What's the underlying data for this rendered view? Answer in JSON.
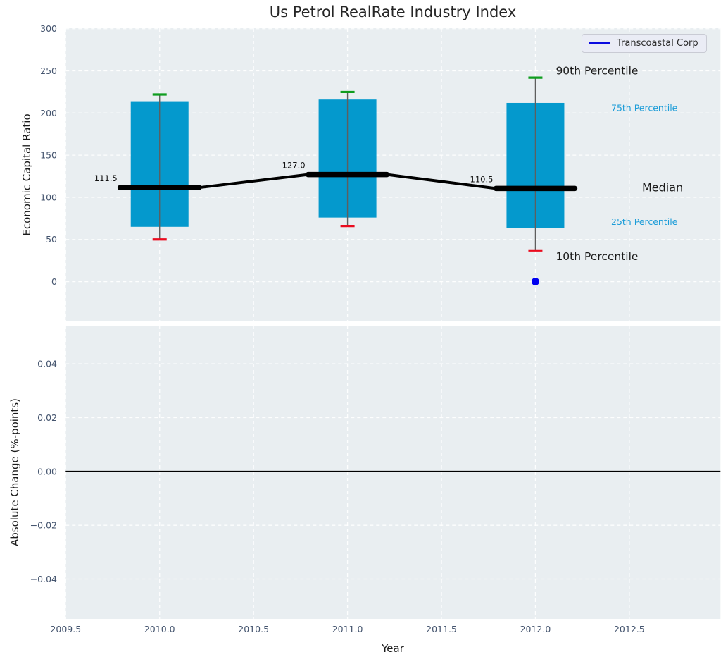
{
  "title": "Us Petrol RealRate Industry Index",
  "legend": {
    "items": [
      {
        "label": "Transcoastal Corp",
        "color": "#0b0be0"
      }
    ]
  },
  "axes": {
    "x": {
      "label": "Year",
      "ticks": [
        "2009.5",
        "2010.0",
        "2010.5",
        "2011.0",
        "2011.5",
        "2012.0",
        "2012.5"
      ],
      "tick_values": [
        2009.5,
        2010.0,
        2010.5,
        2011.0,
        2011.5,
        2012.0,
        2012.5
      ],
      "range": [
        2009.5,
        2012.985
      ]
    },
    "y_top": {
      "label": "Economic Capital Ratio",
      "ticks": [
        "0",
        "50",
        "100",
        "150",
        "200",
        "250",
        "300"
      ],
      "tick_values": [
        0,
        50,
        100,
        150,
        200,
        250,
        300
      ],
      "range": [
        -47.2,
        300.6
      ]
    },
    "y_bottom": {
      "label": "Absolute Change (%-points)",
      "ticks": [
        "0.04",
        "0.02",
        "0.00",
        "−0.02",
        "−0.04"
      ],
      "tick_values": [
        0.04,
        0.02,
        0.0,
        -0.02,
        -0.04
      ],
      "range": [
        -0.0548,
        0.0542
      ]
    }
  },
  "annotations": {
    "p90": "90th Percentile",
    "p75": "75th Percentile",
    "median": "Median",
    "p25": "25th Percentile",
    "p10": "10th Percentile"
  },
  "colors": {
    "axes_bg": "#e9eef1",
    "grid": "#ffffff",
    "box_fill": "#0499cd",
    "cap_top": "#0f9d1f",
    "cap_bottom": "#ea0b1e",
    "whisker": "#5e5e5e",
    "median_line": "#000000",
    "company_marker": "#0000f0",
    "percentile_label": "#1b9cd8",
    "zero_line": "#000000",
    "annotation_text": "#111111"
  },
  "chart_data": {
    "type": "boxplot",
    "title": "Us Petrol RealRate Industry Index",
    "xlabel": "Year",
    "legend_position": "upper right",
    "grid": true,
    "top_panel": {
      "ylabel": "Economic Capital Ratio",
      "ylim": [
        -47,
        301
      ],
      "yticks": [
        0,
        50,
        100,
        150,
        200,
        250,
        300
      ],
      "boxes": [
        {
          "year": 2010,
          "p10": 50,
          "p25": 65,
          "median": 111.5,
          "p75": 214,
          "p90": 222,
          "median_label": "111.5"
        },
        {
          "year": 2011,
          "p10": 66,
          "p25": 76,
          "median": 127.0,
          "p75": 216,
          "p90": 225,
          "median_label": "127.0"
        },
        {
          "year": 2012,
          "p10": 37,
          "p25": 64,
          "median": 110.5,
          "p75": 212,
          "p90": 242,
          "median_label": "110.5"
        }
      ],
      "median_series": {
        "x": [
          2010,
          2011,
          2012
        ],
        "values": [
          111.5,
          127.0,
          110.5
        ]
      },
      "company_point": {
        "name": "Transcoastal Corp",
        "year": 2012,
        "value": 0
      }
    },
    "bottom_panel": {
      "ylabel": "Absolute Change (%-points)",
      "ylim": [
        -0.055,
        0.054
      ],
      "yticks": [
        0.04,
        0.02,
        0.0,
        -0.02,
        -0.04
      ],
      "zero_line": 0.0,
      "series": []
    }
  }
}
